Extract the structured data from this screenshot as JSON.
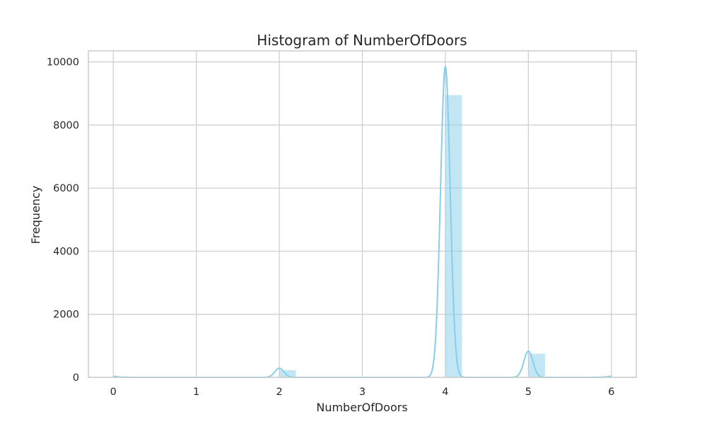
{
  "chart_data": {
    "type": "bar",
    "title": "Histogram of NumberOfDoors",
    "xlabel": "NumberOfDoors",
    "ylabel": "Frequency",
    "xlim": [
      -0.3,
      6.3
    ],
    "ylim": [
      0,
      10350
    ],
    "xticks": [
      0,
      1,
      2,
      3,
      4,
      5,
      6
    ],
    "yticks": [
      0,
      2000,
      4000,
      6000,
      8000,
      10000
    ],
    "grid": true,
    "bin_width": 0.2,
    "bins": [
      {
        "x0": 0.0,
        "x1": 0.2,
        "count": 30
      },
      {
        "x0": 2.0,
        "x1": 2.2,
        "count": 230
      },
      {
        "x0": 4.0,
        "x1": 4.2,
        "count": 8950
      },
      {
        "x0": 5.0,
        "x1": 5.2,
        "count": 750
      },
      {
        "x0": 5.8,
        "x1": 6.0,
        "count": 30
      }
    ],
    "kde": {
      "peaks": [
        {
          "center": 0.0,
          "height": 35,
          "sigma": 0.05
        },
        {
          "center": 2.0,
          "height": 290,
          "sigma": 0.055
        },
        {
          "center": 4.0,
          "height": 9850,
          "sigma": 0.058
        },
        {
          "center": 5.0,
          "height": 830,
          "sigma": 0.055
        },
        {
          "center": 6.0,
          "height": 35,
          "sigma": 0.05
        }
      ]
    },
    "colors": {
      "bar": "#87ceeb",
      "line": "#87ceeb"
    }
  }
}
